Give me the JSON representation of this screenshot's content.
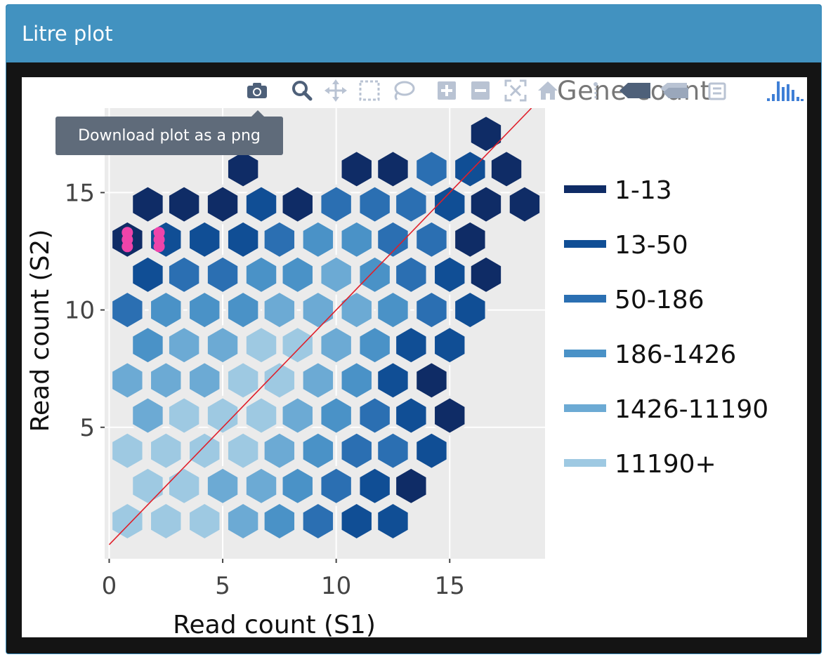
{
  "panel": {
    "title": "Litre plot"
  },
  "tooltip": {
    "text": "Download plot as a png"
  },
  "modebar": {
    "legend_title": "Gene count",
    "icons": [
      "camera-icon",
      "zoom-icon",
      "pan-icon",
      "box-select-icon",
      "lasso-icon",
      "zoom-in-icon",
      "zoom-out-icon",
      "autoscale-icon",
      "reset-axes-icon",
      "spike-lines-icon",
      "hover-closest-icon",
      "hover-compare-icon",
      "toggle-legend-icon",
      "plotly-logo-icon"
    ]
  },
  "colors": {
    "bin_1": "#0f2c66",
    "bin_2": "#104e95",
    "bin_3": "#2b6fb2",
    "bin_4": "#4a92c7",
    "bin_5": "#6caad4",
    "bin_6": "#9ec9e2",
    "highlight": "#ee44aa",
    "diagonal": "#e01f2a",
    "plot_bg": "#ebebeb"
  },
  "chart_data": {
    "type": "heatmap",
    "subtype": "hexbin",
    "xlabel": "Read count (S1)",
    "ylabel": "Read count (S2)",
    "xlim": [
      -0.2,
      19.2
    ],
    "ylim": [
      -0.6,
      18.6
    ],
    "x_ticks": [
      0,
      5,
      10,
      15
    ],
    "y_ticks": [
      5,
      10,
      15
    ],
    "grid": true,
    "legend_placement": "right",
    "legend": [
      "1-13",
      "13-50",
      "50-186",
      "186-1426",
      "1426-11190",
      "11190+"
    ],
    "reference_line": {
      "from": [
        0,
        0
      ],
      "to": [
        18.6,
        18.6
      ]
    },
    "hex_rows": [
      {
        "y": 1.0,
        "cells": [
          [
            0.8,
            6
          ],
          [
            2.5,
            6
          ],
          [
            4.2,
            6
          ],
          [
            5.9,
            5
          ],
          [
            7.5,
            4
          ],
          [
            9.2,
            3
          ],
          [
            10.9,
            2
          ],
          [
            12.5,
            2
          ]
        ]
      },
      {
        "y": 2.5,
        "cells": [
          [
            1.7,
            6
          ],
          [
            3.3,
            6
          ],
          [
            5.0,
            5
          ],
          [
            6.7,
            5
          ],
          [
            8.3,
            4
          ],
          [
            10.0,
            3
          ],
          [
            11.7,
            2
          ],
          [
            13.3,
            1
          ]
        ]
      },
      {
        "y": 4.0,
        "cells": [
          [
            0.8,
            6
          ],
          [
            2.5,
            6
          ],
          [
            4.2,
            6
          ],
          [
            5.9,
            6
          ],
          [
            7.5,
            5
          ],
          [
            9.2,
            4
          ],
          [
            10.9,
            3
          ],
          [
            12.5,
            3
          ],
          [
            14.2,
            2
          ]
        ]
      },
      {
        "y": 5.5,
        "cells": [
          [
            1.7,
            5
          ],
          [
            3.3,
            6
          ],
          [
            5.0,
            6
          ],
          [
            6.7,
            6
          ],
          [
            8.3,
            5
          ],
          [
            10.0,
            4
          ],
          [
            11.7,
            3
          ],
          [
            13.3,
            2
          ],
          [
            15.0,
            1
          ]
        ]
      },
      {
        "y": 7.0,
        "cells": [
          [
            0.8,
            5
          ],
          [
            2.5,
            5
          ],
          [
            4.2,
            5
          ],
          [
            5.9,
            6
          ],
          [
            7.5,
            6
          ],
          [
            9.2,
            5
          ],
          [
            10.9,
            4
          ],
          [
            12.5,
            2
          ],
          [
            14.2,
            1
          ]
        ]
      },
      {
        "y": 8.5,
        "cells": [
          [
            1.7,
            4
          ],
          [
            3.3,
            5
          ],
          [
            5.0,
            5
          ],
          [
            6.7,
            6
          ],
          [
            8.3,
            6
          ],
          [
            10.0,
            5
          ],
          [
            11.7,
            4
          ],
          [
            13.3,
            2
          ],
          [
            15.0,
            2
          ]
        ]
      },
      {
        "y": 10.0,
        "cells": [
          [
            0.8,
            3
          ],
          [
            2.5,
            4
          ],
          [
            4.2,
            4
          ],
          [
            5.9,
            4
          ],
          [
            7.5,
            5
          ],
          [
            9.2,
            5
          ],
          [
            10.9,
            5
          ],
          [
            12.5,
            4
          ],
          [
            14.2,
            3
          ],
          [
            15.9,
            2
          ]
        ]
      },
      {
        "y": 11.5,
        "cells": [
          [
            1.7,
            2
          ],
          [
            3.3,
            3
          ],
          [
            5.0,
            3
          ],
          [
            6.7,
            4
          ],
          [
            8.3,
            4
          ],
          [
            10.0,
            5
          ],
          [
            11.7,
            4
          ],
          [
            13.3,
            3
          ],
          [
            15.0,
            2
          ],
          [
            16.6,
            1
          ]
        ]
      },
      {
        "y": 13.0,
        "cells": [
          [
            0.8,
            1
          ],
          [
            2.5,
            2
          ],
          [
            4.2,
            2
          ],
          [
            5.9,
            2
          ],
          [
            7.5,
            3
          ],
          [
            9.2,
            4
          ],
          [
            10.9,
            4
          ],
          [
            12.5,
            3
          ],
          [
            14.2,
            3
          ],
          [
            15.9,
            1
          ]
        ]
      },
      {
        "y": 14.5,
        "cells": [
          [
            1.7,
            1
          ],
          [
            3.3,
            1
          ],
          [
            5.0,
            1
          ],
          [
            6.7,
            2
          ],
          [
            8.3,
            1
          ],
          [
            10.0,
            3
          ],
          [
            11.7,
            3
          ],
          [
            13.3,
            3
          ],
          [
            15.0,
            2
          ],
          [
            16.6,
            1
          ],
          [
            18.3,
            1
          ]
        ]
      },
      {
        "y": 16.0,
        "cells": [
          [
            5.9,
            1
          ],
          [
            10.9,
            1
          ],
          [
            12.5,
            1
          ],
          [
            14.2,
            3
          ],
          [
            15.9,
            2
          ],
          [
            17.5,
            1
          ]
        ]
      },
      {
        "y": 17.5,
        "cells": [
          [
            16.6,
            1
          ]
        ]
      }
    ],
    "highlight_points": [
      {
        "x": 0.8,
        "y": 13.3
      },
      {
        "x": 0.8,
        "y": 13.0
      },
      {
        "x": 0.8,
        "y": 12.7
      },
      {
        "x": 2.2,
        "y": 13.3
      },
      {
        "x": 2.2,
        "y": 13.0
      },
      {
        "x": 2.2,
        "y": 12.7
      }
    ]
  }
}
